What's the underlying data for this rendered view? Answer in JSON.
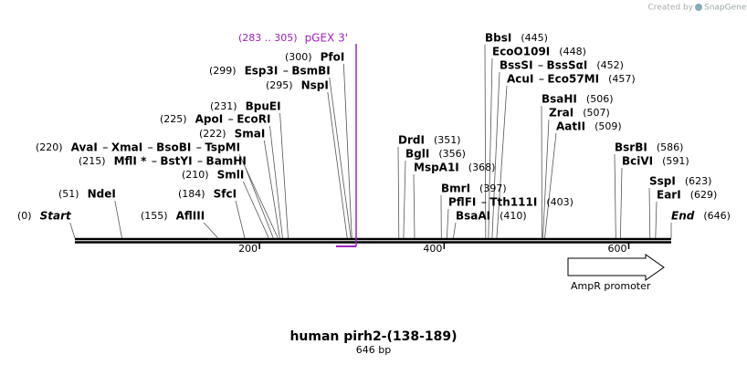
{
  "header": {
    "credit": "Created by",
    "brand": "SnapGene"
  },
  "map": {
    "ticks": [
      200,
      400,
      600
    ],
    "primer": {
      "position": "(283 .. 305)",
      "name": "pGEX 3'"
    },
    "sites": [
      {
        "position": "(300)",
        "enzymes": [
          "PfoI"
        ]
      },
      {
        "position": "(299)",
        "enzymes": [
          "Esp3I",
          "BsmBI"
        ]
      },
      {
        "position": "(295)",
        "enzymes": [
          "NspI"
        ]
      },
      {
        "position": "(231)",
        "enzymes": [
          "BpuEI"
        ]
      },
      {
        "position": "(225)",
        "enzymes": [
          "ApoI",
          "EcoRI"
        ]
      },
      {
        "position": "(222)",
        "enzymes": [
          "SmaI"
        ]
      },
      {
        "position": "(220)",
        "enzymes": [
          "AvaI",
          "XmaI",
          "BsoBI",
          "TspMI"
        ]
      },
      {
        "position": "(215)",
        "enzymes": [
          "MflI *",
          "BstYI",
          "BamHI"
        ]
      },
      {
        "position": "(210)",
        "enzymes": [
          "SmlI"
        ]
      },
      {
        "position": "(51)",
        "enzymes": [
          "NdeI"
        ]
      },
      {
        "position": "(184)",
        "enzymes": [
          "SfcI"
        ]
      },
      {
        "position": "(155)",
        "enzymes": [
          "AflIII"
        ]
      },
      {
        "position": "(0)",
        "enzymes": [
          "Start"
        ]
      },
      {
        "position": "(445)",
        "enzymes": [
          "BbsI"
        ]
      },
      {
        "position": "(448)",
        "enzymes": [
          "EcoO109I"
        ]
      },
      {
        "position": "(452)",
        "enzymes": [
          "BssSI",
          "BssSαI"
        ]
      },
      {
        "position": "(457)",
        "enzymes": [
          "AcuI",
          "Eco57MI"
        ]
      },
      {
        "position": "(506)",
        "enzymes": [
          "BsaHI"
        ]
      },
      {
        "position": "(507)",
        "enzymes": [
          "ZraI"
        ]
      },
      {
        "position": "(509)",
        "enzymes": [
          "AatII"
        ]
      },
      {
        "position": "(351)",
        "enzymes": [
          "DrdI"
        ]
      },
      {
        "position": "(356)",
        "enzymes": [
          "BglI"
        ]
      },
      {
        "position": "(368)",
        "enzymes": [
          "MspA1I"
        ]
      },
      {
        "position": "(397)",
        "enzymes": [
          "BmrI"
        ]
      },
      {
        "position": "(403)",
        "enzymes": [
          "PflFI",
          "Tth111I"
        ]
      },
      {
        "position": "(410)",
        "enzymes": [
          "BsaAI"
        ]
      },
      {
        "position": "(586)",
        "enzymes": [
          "BsrBI"
        ]
      },
      {
        "position": "(591)",
        "enzymes": [
          "BciVI"
        ]
      },
      {
        "position": "(623)",
        "enzymes": [
          "SspI"
        ]
      },
      {
        "position": "(629)",
        "enzymes": [
          "EarI"
        ]
      },
      {
        "position": "(646)",
        "enzymes": [
          "End"
        ]
      }
    ],
    "feature": {
      "name": "AmpR promoter"
    }
  },
  "footer": {
    "title": "human pirh2-(138-189)",
    "length": "646 bp"
  }
}
